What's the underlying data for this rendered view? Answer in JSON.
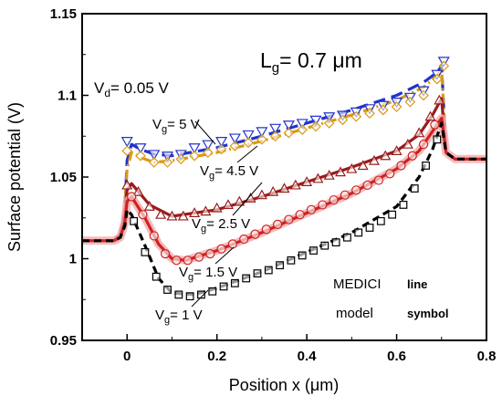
{
  "chart_data": {
    "type": "line",
    "title": "",
    "xlabel": "Position x (μm)",
    "ylabel": "Surface potential (V)",
    "xlim": [
      -0.1,
      0.8
    ],
    "ylim": [
      0.95,
      1.15
    ],
    "xticks": [
      0.0,
      0.2,
      0.4,
      0.6,
      0.8
    ],
    "xtick_labels": [
      "0",
      "0.2",
      "0.4",
      "0.6",
      "0.8"
    ],
    "yticks": [
      0.95,
      1.0,
      1.05,
      1.1,
      1.15
    ],
    "ytick_labels": [
      "0.95",
      "1",
      "1.05",
      "1.1",
      "1.15"
    ],
    "grid": false,
    "annotations": {
      "lg_main": "L",
      "lg_sub": "g",
      "lg_rest": "= 0.7 μm",
      "vd_main": "V",
      "vd_sub": "d",
      "vd_rest": "= 0.05 V",
      "vg_main": "V",
      "vg_sub": "g",
      "vg5": "= 5 V",
      "vg45": "= 4.5 V",
      "vg25": "= 2.5 V",
      "vg15": "= 1.5 V",
      "vg1": "= 1 V"
    },
    "legend": {
      "medici": "MEDICI",
      "line": "line",
      "model": "model",
      "symbol": "symbol"
    },
    "series": [
      {
        "key": "vg5",
        "color": "#2233cc",
        "dash": "13,7",
        "marker": "triangle-down",
        "line": [
          [
            -0.1,
            1.011
          ],
          [
            -0.03,
            1.011
          ],
          [
            -0.015,
            1.015
          ],
          [
            -0.005,
            1.03
          ],
          [
            0.0,
            1.06
          ],
          [
            0.01,
            1.07
          ],
          [
            0.03,
            1.067
          ],
          [
            0.06,
            1.064
          ],
          [
            0.1,
            1.063
          ],
          [
            0.2,
            1.068
          ],
          [
            0.3,
            1.075
          ],
          [
            0.4,
            1.083
          ],
          [
            0.5,
            1.091
          ],
          [
            0.6,
            1.1
          ],
          [
            0.66,
            1.108
          ],
          [
            0.69,
            1.114
          ],
          [
            0.7,
            1.118
          ],
          [
            0.71,
            1.065
          ],
          [
            0.73,
            1.061
          ],
          [
            0.8,
            1.061
          ]
        ],
        "points": [
          [
            0.0,
            1.072
          ],
          [
            0.03,
            1.068
          ],
          [
            0.06,
            1.064
          ],
          [
            0.09,
            1.063
          ],
          [
            0.12,
            1.064
          ],
          [
            0.15,
            1.068
          ],
          [
            0.18,
            1.07
          ],
          [
            0.21,
            1.072
          ],
          [
            0.24,
            1.074
          ],
          [
            0.27,
            1.076
          ],
          [
            0.3,
            1.078
          ],
          [
            0.33,
            1.08
          ],
          [
            0.36,
            1.082
          ],
          [
            0.39,
            1.083
          ],
          [
            0.42,
            1.085
          ],
          [
            0.45,
            1.087
          ],
          [
            0.48,
            1.088
          ],
          [
            0.51,
            1.09
          ],
          [
            0.54,
            1.092
          ],
          [
            0.57,
            1.094
          ],
          [
            0.6,
            1.096
          ],
          [
            0.63,
            1.099
          ],
          [
            0.66,
            1.103
          ],
          [
            0.69,
            1.113
          ],
          [
            0.705,
            1.121
          ]
        ]
      },
      {
        "key": "vg45",
        "color": "#d99a17",
        "dash": "11,4,2,4",
        "marker": "diamond",
        "line": [
          [
            -0.1,
            1.011
          ],
          [
            -0.03,
            1.011
          ],
          [
            -0.015,
            1.015
          ],
          [
            -0.005,
            1.03
          ],
          [
            0.0,
            1.055
          ],
          [
            0.01,
            1.065
          ],
          [
            0.03,
            1.062
          ],
          [
            0.06,
            1.059
          ],
          [
            0.1,
            1.06
          ],
          [
            0.2,
            1.065
          ],
          [
            0.3,
            1.072
          ],
          [
            0.4,
            1.08
          ],
          [
            0.5,
            1.088
          ],
          [
            0.6,
            1.097
          ],
          [
            0.66,
            1.105
          ],
          [
            0.69,
            1.112
          ],
          [
            0.7,
            1.116
          ],
          [
            0.71,
            1.065
          ],
          [
            0.73,
            1.061
          ],
          [
            0.8,
            1.061
          ]
        ],
        "points": [
          [
            0.0,
            1.066
          ],
          [
            0.03,
            1.063
          ],
          [
            0.06,
            1.059
          ],
          [
            0.09,
            1.059
          ],
          [
            0.12,
            1.061
          ],
          [
            0.15,
            1.063
          ],
          [
            0.18,
            1.065
          ],
          [
            0.21,
            1.067
          ],
          [
            0.24,
            1.069
          ],
          [
            0.27,
            1.071
          ],
          [
            0.3,
            1.073
          ],
          [
            0.33,
            1.075
          ],
          [
            0.36,
            1.077
          ],
          [
            0.39,
            1.079
          ],
          [
            0.42,
            1.081
          ],
          [
            0.45,
            1.083
          ],
          [
            0.48,
            1.085
          ],
          [
            0.51,
            1.087
          ],
          [
            0.54,
            1.089
          ],
          [
            0.57,
            1.091
          ],
          [
            0.6,
            1.093
          ],
          [
            0.63,
            1.096
          ],
          [
            0.66,
            1.1
          ],
          [
            0.69,
            1.11
          ],
          [
            0.705,
            1.118
          ]
        ]
      },
      {
        "key": "vg25",
        "color": "#9a1c1c",
        "dash": "",
        "marker": "triangle-up",
        "line": [
          [
            -0.1,
            1.011
          ],
          [
            -0.03,
            1.011
          ],
          [
            -0.015,
            1.015
          ],
          [
            -0.005,
            1.028
          ],
          [
            0.0,
            1.042
          ],
          [
            0.01,
            1.046
          ],
          [
            0.05,
            1.033
          ],
          [
            0.1,
            1.026
          ],
          [
            0.2,
            1.03
          ],
          [
            0.3,
            1.038
          ],
          [
            0.4,
            1.047
          ],
          [
            0.5,
            1.056
          ],
          [
            0.6,
            1.066
          ],
          [
            0.65,
            1.076
          ],
          [
            0.68,
            1.088
          ],
          [
            0.7,
            1.098
          ],
          [
            0.71,
            1.065
          ],
          [
            0.73,
            1.061
          ],
          [
            0.8,
            1.061
          ]
        ],
        "points": [
          [
            0.0,
            1.045
          ],
          [
            0.025,
            1.041
          ],
          [
            0.05,
            1.032
          ],
          [
            0.075,
            1.027
          ],
          [
            0.1,
            1.026
          ],
          [
            0.125,
            1.026
          ],
          [
            0.15,
            1.028
          ],
          [
            0.175,
            1.029
          ],
          [
            0.2,
            1.031
          ],
          [
            0.225,
            1.033
          ],
          [
            0.25,
            1.035
          ],
          [
            0.275,
            1.037
          ],
          [
            0.3,
            1.039
          ],
          [
            0.325,
            1.041
          ],
          [
            0.35,
            1.043
          ],
          [
            0.375,
            1.045
          ],
          [
            0.4,
            1.047
          ],
          [
            0.425,
            1.049
          ],
          [
            0.45,
            1.051
          ],
          [
            0.475,
            1.053
          ],
          [
            0.5,
            1.055
          ],
          [
            0.525,
            1.057
          ],
          [
            0.55,
            1.06
          ],
          [
            0.575,
            1.063
          ],
          [
            0.6,
            1.066
          ],
          [
            0.625,
            1.07
          ],
          [
            0.65,
            1.077
          ],
          [
            0.675,
            1.087
          ],
          [
            0.695,
            1.097
          ]
        ]
      },
      {
        "key": "vg15",
        "color": "#cc2222",
        "dash": "",
        "marker": "circle",
        "glow": "#f4aaaa",
        "line": [
          [
            -0.1,
            1.011
          ],
          [
            -0.03,
            1.011
          ],
          [
            -0.015,
            1.013
          ],
          [
            -0.005,
            1.022
          ],
          [
            0.0,
            1.035
          ],
          [
            0.01,
            1.038
          ],
          [
            0.04,
            1.025
          ],
          [
            0.07,
            1.009
          ],
          [
            0.1,
            1.0
          ],
          [
            0.13,
            0.999
          ],
          [
            0.2,
            1.005
          ],
          [
            0.3,
            1.016
          ],
          [
            0.4,
            1.028
          ],
          [
            0.5,
            1.04
          ],
          [
            0.6,
            1.055
          ],
          [
            0.65,
            1.066
          ],
          [
            0.68,
            1.078
          ],
          [
            0.7,
            1.086
          ],
          [
            0.71,
            1.065
          ],
          [
            0.73,
            1.061
          ],
          [
            0.8,
            1.061
          ]
        ],
        "points": [
          [
            0.01,
            1.038
          ],
          [
            0.035,
            1.027
          ],
          [
            0.06,
            1.014
          ],
          [
            0.085,
            1.003
          ],
          [
            0.11,
            0.999
          ],
          [
            0.135,
            0.999
          ],
          [
            0.16,
            1.001
          ],
          [
            0.185,
            1.003
          ],
          [
            0.21,
            1.006
          ],
          [
            0.235,
            1.009
          ],
          [
            0.26,
            1.012
          ],
          [
            0.285,
            1.015
          ],
          [
            0.31,
            1.018
          ],
          [
            0.335,
            1.021
          ],
          [
            0.36,
            1.024
          ],
          [
            0.385,
            1.027
          ],
          [
            0.41,
            1.03
          ],
          [
            0.435,
            1.033
          ],
          [
            0.46,
            1.036
          ],
          [
            0.485,
            1.039
          ],
          [
            0.51,
            1.042
          ],
          [
            0.535,
            1.045
          ],
          [
            0.56,
            1.048
          ],
          [
            0.585,
            1.052
          ],
          [
            0.61,
            1.057
          ],
          [
            0.635,
            1.063
          ],
          [
            0.66,
            1.07
          ],
          [
            0.685,
            1.082
          ]
        ]
      },
      {
        "key": "vg1",
        "color": "#000000",
        "dash": "8,5",
        "marker": "square",
        "line": [
          [
            -0.1,
            1.011
          ],
          [
            -0.03,
            1.011
          ],
          [
            -0.015,
            1.013
          ],
          [
            -0.005,
            1.02
          ],
          [
            0.0,
            1.03
          ],
          [
            0.01,
            1.027
          ],
          [
            0.04,
            1.008
          ],
          [
            0.07,
            0.988
          ],
          [
            0.1,
            0.979
          ],
          [
            0.15,
            0.978
          ],
          [
            0.2,
            0.982
          ],
          [
            0.3,
            0.992
          ],
          [
            0.4,
            1.004
          ],
          [
            0.5,
            1.016
          ],
          [
            0.6,
            1.032
          ],
          [
            0.65,
            1.05
          ],
          [
            0.68,
            1.067
          ],
          [
            0.7,
            1.083
          ],
          [
            0.71,
            1.065
          ],
          [
            0.73,
            1.061
          ],
          [
            0.8,
            1.061
          ]
        ],
        "points": [
          [
            0.015,
            1.023
          ],
          [
            0.04,
            1.004
          ],
          [
            0.065,
            0.989
          ],
          [
            0.09,
            0.981
          ],
          [
            0.115,
            0.978
          ],
          [
            0.14,
            0.977
          ],
          [
            0.165,
            0.978
          ],
          [
            0.19,
            0.98
          ],
          [
            0.215,
            0.983
          ],
          [
            0.24,
            0.985
          ],
          [
            0.265,
            0.988
          ],
          [
            0.29,
            0.991
          ],
          [
            0.315,
            0.993
          ],
          [
            0.34,
            0.996
          ],
          [
            0.365,
            0.999
          ],
          [
            0.39,
            1.002
          ],
          [
            0.415,
            1.005
          ],
          [
            0.44,
            1.008
          ],
          [
            0.465,
            1.01
          ],
          [
            0.49,
            1.013
          ],
          [
            0.515,
            1.016
          ],
          [
            0.54,
            1.019
          ],
          [
            0.565,
            1.023
          ],
          [
            0.59,
            1.027
          ],
          [
            0.615,
            1.033
          ],
          [
            0.64,
            1.043
          ],
          [
            0.665,
            1.057
          ],
          [
            0.69,
            1.073
          ]
        ]
      }
    ]
  }
}
